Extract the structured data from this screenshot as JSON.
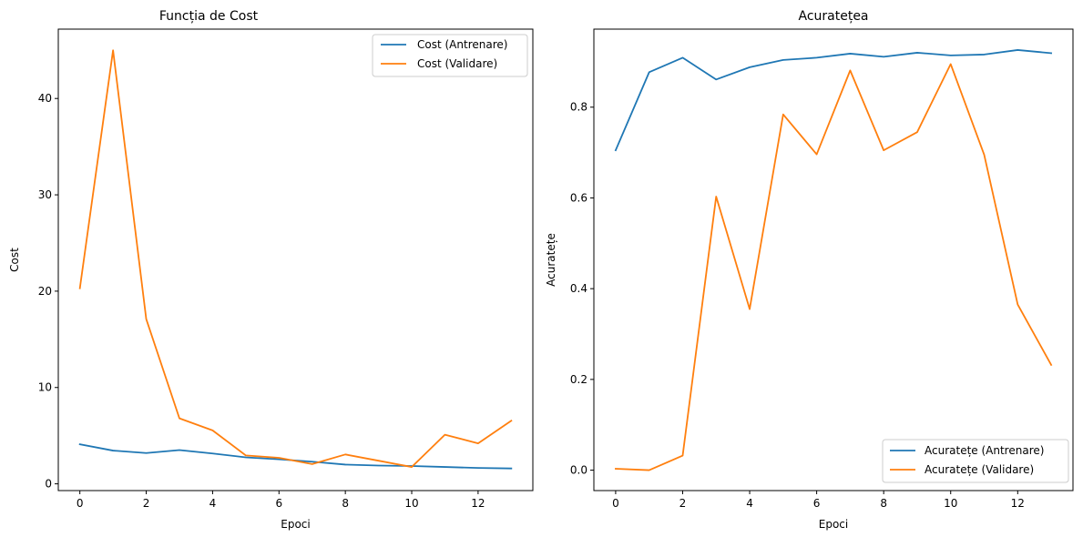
{
  "chart_data": [
    {
      "type": "line",
      "title": "Funcția de Cost",
      "xlabel": "Epoci",
      "ylabel": "Cost",
      "xlim": [
        -0.65,
        13.65
      ],
      "ylim": [
        -0.7,
        47.2
      ],
      "xticks": [
        0,
        2,
        4,
        6,
        8,
        10,
        12
      ],
      "yticks": [
        0,
        10,
        20,
        30,
        40
      ],
      "legend_position": "top-right",
      "grid": false,
      "x": [
        0,
        1,
        2,
        3,
        4,
        5,
        6,
        7,
        8,
        9,
        10,
        11,
        12,
        13
      ],
      "series": [
        {
          "name": "Cost (Antrenare)",
          "color": "#1f77b4",
          "values": [
            4.1,
            3.45,
            3.2,
            3.5,
            3.15,
            2.75,
            2.55,
            2.3,
            2.0,
            1.9,
            1.85,
            1.75,
            1.65,
            1.6
          ]
        },
        {
          "name": "Cost (Validare)",
          "color": "#ff7f0e",
          "values": [
            20.3,
            45.0,
            17.1,
            6.8,
            5.55,
            2.95,
            2.7,
            2.05,
            3.05,
            2.4,
            1.75,
            5.1,
            4.2,
            6.55
          ]
        }
      ]
    },
    {
      "type": "line",
      "title": "Acuratețea",
      "xlabel": "Epoci",
      "ylabel": "Acuratețe",
      "xlim": [
        -0.65,
        13.65
      ],
      "ylim": [
        -0.045,
        0.972
      ],
      "xticks": [
        0,
        2,
        4,
        6,
        8,
        10,
        12
      ],
      "yticks": [
        0.0,
        0.2,
        0.4,
        0.6,
        0.8
      ],
      "ytick_labels": [
        "0.0",
        "0.2",
        "0.4",
        "0.6",
        "0.8"
      ],
      "legend_position": "bottom-right",
      "grid": false,
      "x": [
        0,
        1,
        2,
        3,
        4,
        5,
        6,
        7,
        8,
        9,
        10,
        11,
        12,
        13
      ],
      "series": [
        {
          "name": "Acuratețe (Antrenare)",
          "color": "#1f77b4",
          "values": [
            0.705,
            0.877,
            0.909,
            0.861,
            0.888,
            0.904,
            0.909,
            0.918,
            0.911,
            0.92,
            0.914,
            0.916,
            0.926,
            0.919
          ]
        },
        {
          "name": "Acuratețe (Validare)",
          "color": "#ff7f0e",
          "values": [
            0.003,
            0.0,
            0.032,
            0.603,
            0.355,
            0.784,
            0.696,
            0.881,
            0.705,
            0.745,
            0.895,
            0.695,
            0.365,
            0.232
          ]
        }
      ]
    }
  ]
}
